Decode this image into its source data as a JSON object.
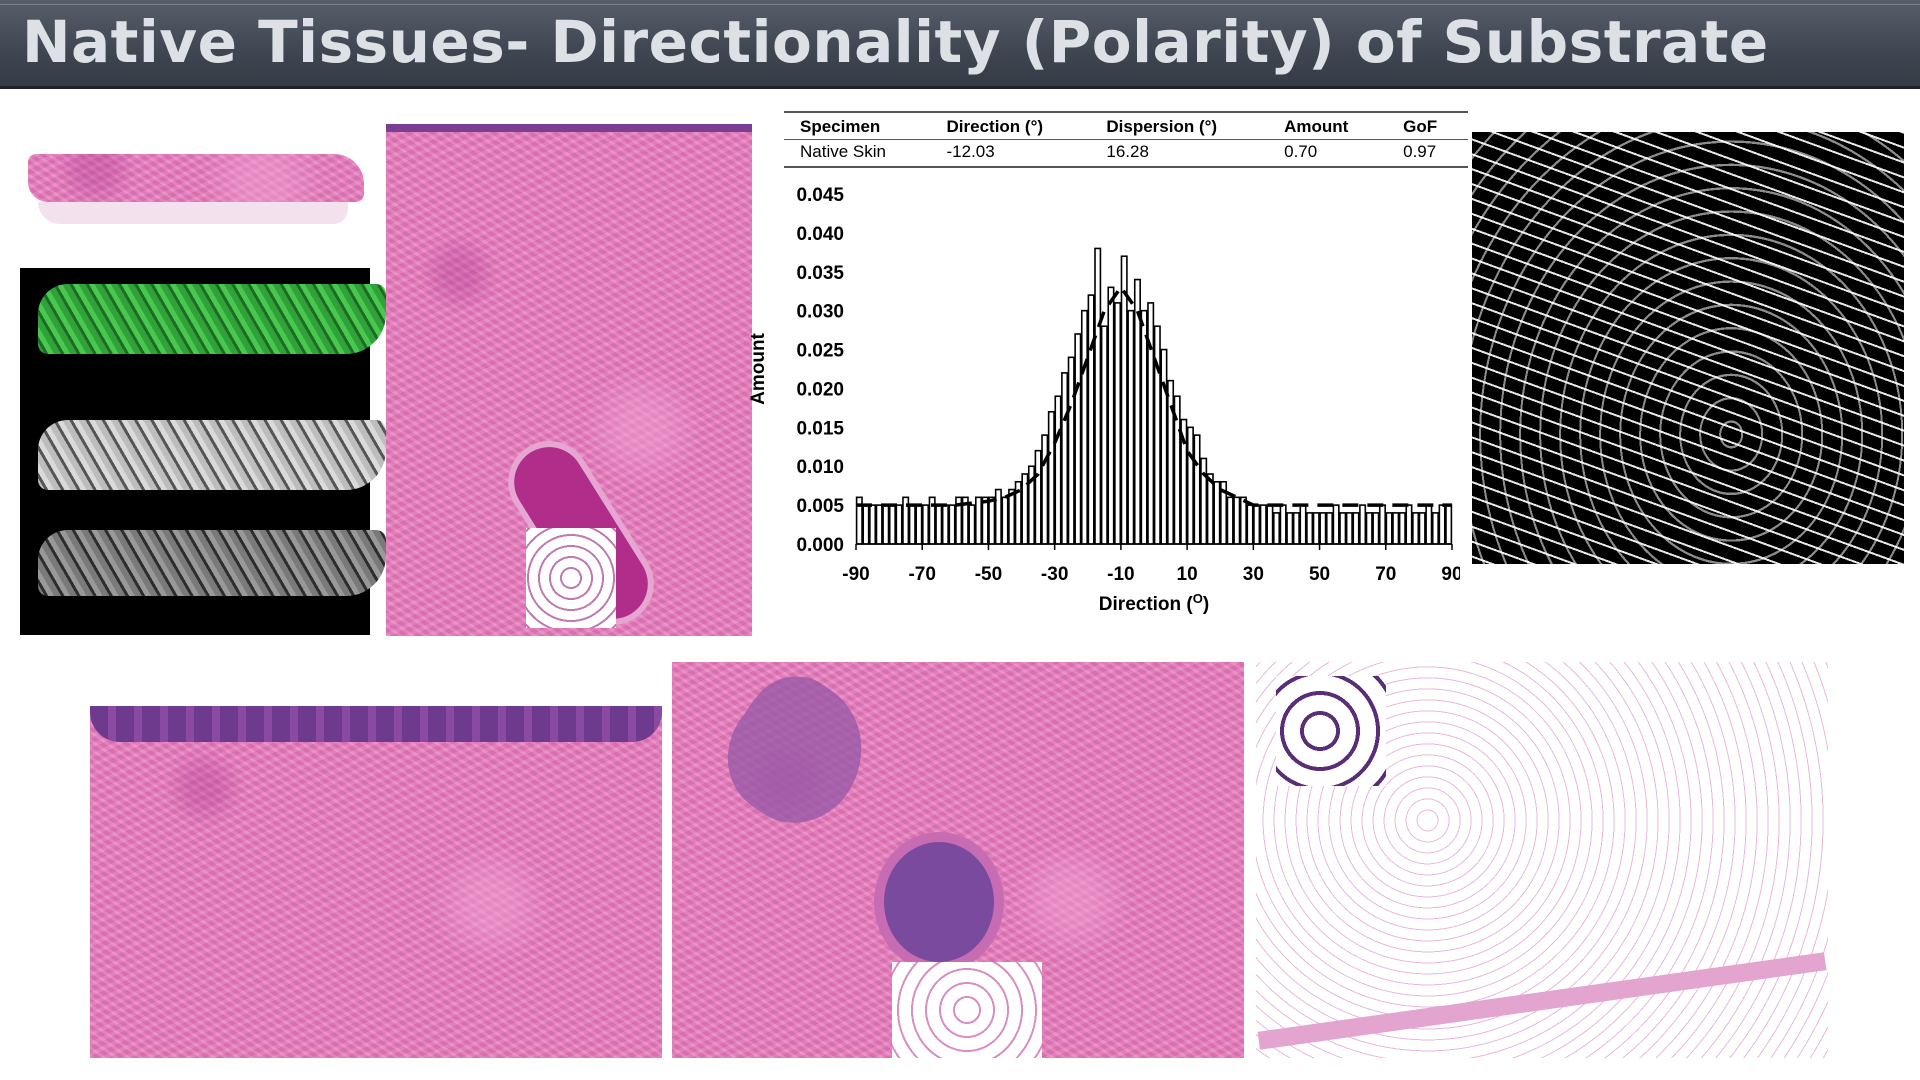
{
  "title": "Native Tissues- Directionality (Polarity) of Substrate",
  "table": {
    "headers": [
      "Specimen",
      "Direction (°)",
      "Dispersion (°)",
      "Amount",
      "GoF"
    ],
    "row": [
      "Native Skin",
      "-12.03",
      "16.28",
      "0.70",
      "0.97"
    ]
  },
  "chart_data": {
    "type": "bar",
    "xlabel": "Direction (O)",
    "ylabel": "Amount",
    "xlim": [
      -90,
      90
    ],
    "ylim": [
      0,
      0.045
    ],
    "xticks": [
      "-90",
      "-70",
      "-50",
      "-30",
      "-10",
      "10",
      "30",
      "50",
      "70",
      "90"
    ],
    "yticks": [
      "0.000",
      "0.005",
      "0.010",
      "0.015",
      "0.020",
      "0.025",
      "0.030",
      "0.035",
      "0.040",
      "0.045"
    ],
    "bin_width": 2,
    "x": [
      -89,
      -87,
      -85,
      -83,
      -81,
      -79,
      -77,
      -75,
      -73,
      -71,
      -69,
      -67,
      -65,
      -63,
      -61,
      -59,
      -57,
      -55,
      -53,
      -51,
      -49,
      -47,
      -45,
      -43,
      -41,
      -39,
      -37,
      -35,
      -33,
      -31,
      -29,
      -27,
      -25,
      -23,
      -21,
      -19,
      -17,
      -15,
      -13,
      -11,
      -9,
      -7,
      -5,
      -3,
      -1,
      1,
      3,
      5,
      7,
      9,
      11,
      13,
      15,
      17,
      19,
      21,
      23,
      25,
      27,
      29,
      31,
      33,
      35,
      37,
      39,
      41,
      43,
      45,
      47,
      49,
      51,
      53,
      55,
      57,
      59,
      61,
      63,
      65,
      67,
      69,
      71,
      73,
      75,
      77,
      79,
      81,
      83,
      85,
      87,
      89
    ],
    "values": [
      0.006,
      0.005,
      0.005,
      0.005,
      0.005,
      0.005,
      0.005,
      0.006,
      0.005,
      0.005,
      0.005,
      0.006,
      0.005,
      0.005,
      0.005,
      0.006,
      0.006,
      0.005,
      0.006,
      0.006,
      0.006,
      0.007,
      0.006,
      0.007,
      0.008,
      0.009,
      0.01,
      0.012,
      0.014,
      0.017,
      0.019,
      0.022,
      0.024,
      0.027,
      0.03,
      0.032,
      0.038,
      0.028,
      0.033,
      0.031,
      0.037,
      0.03,
      0.034,
      0.03,
      0.031,
      0.028,
      0.025,
      0.021,
      0.019,
      0.016,
      0.015,
      0.014,
      0.011,
      0.009,
      0.008,
      0.008,
      0.006,
      0.006,
      0.006,
      0.005,
      0.005,
      0.005,
      0.005,
      0.004,
      0.005,
      0.004,
      0.004,
      0.005,
      0.004,
      0.004,
      0.004,
      0.004,
      0.005,
      0.004,
      0.004,
      0.004,
      0.005,
      0.004,
      0.004,
      0.005,
      0.004,
      0.004,
      0.004,
      0.005,
      0.004,
      0.004,
      0.005,
      0.004,
      0.005,
      0.005
    ],
    "fit": {
      "style": "dashed",
      "x": [
        -90,
        -80,
        -70,
        -60,
        -50,
        -45,
        -40,
        -35,
        -30,
        -25,
        -20,
        -15,
        -10,
        -5,
        0,
        5,
        10,
        15,
        20,
        25,
        30,
        40,
        50,
        60,
        70,
        80,
        90
      ],
      "y": [
        0.005,
        0.005,
        0.005,
        0.005,
        0.0055,
        0.006,
        0.007,
        0.009,
        0.013,
        0.018,
        0.024,
        0.03,
        0.033,
        0.03,
        0.024,
        0.018,
        0.012,
        0.009,
        0.007,
        0.006,
        0.005,
        0.005,
        0.005,
        0.005,
        0.005,
        0.005,
        0.005
      ]
    }
  }
}
